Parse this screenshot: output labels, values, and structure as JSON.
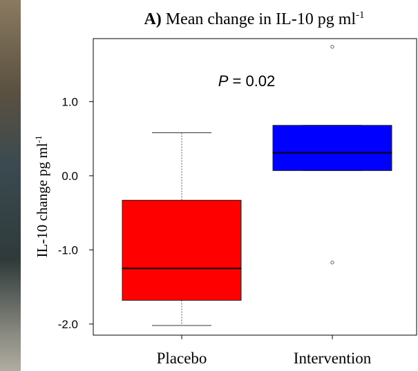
{
  "chart_data": {
    "type": "box",
    "panel_label": "A)",
    "title": " Mean change in IL-10 pg ml",
    "title_superscript": "-1",
    "ylabel": "IL-10 change pg ml",
    "ylabel_superscript": "-1",
    "ylim": [
      -2.15,
      1.85
    ],
    "yticks": [
      1.0,
      0.0,
      -1.0,
      -2.0
    ],
    "ytick_labels": [
      "1.0",
      "0.0",
      "-1.0",
      "-2.0"
    ],
    "categories": [
      "Placebo",
      "Intervention"
    ],
    "annotation": {
      "italic": "P",
      "text": " = 0.02"
    },
    "boxes": [
      {
        "name": "Placebo",
        "color": "#ff0000",
        "whisker_low": -2.02,
        "q1": -1.68,
        "median": -1.25,
        "q3": -0.33,
        "whisker_high": 0.58,
        "outliers": []
      },
      {
        "name": "Intervention",
        "color": "#0000ff",
        "whisker_low": 0.07,
        "q1": 0.07,
        "median": 0.31,
        "q3": 0.68,
        "whisker_high": 0.68,
        "outliers": [
          1.74,
          -1.17
        ]
      }
    ],
    "grid": false
  }
}
